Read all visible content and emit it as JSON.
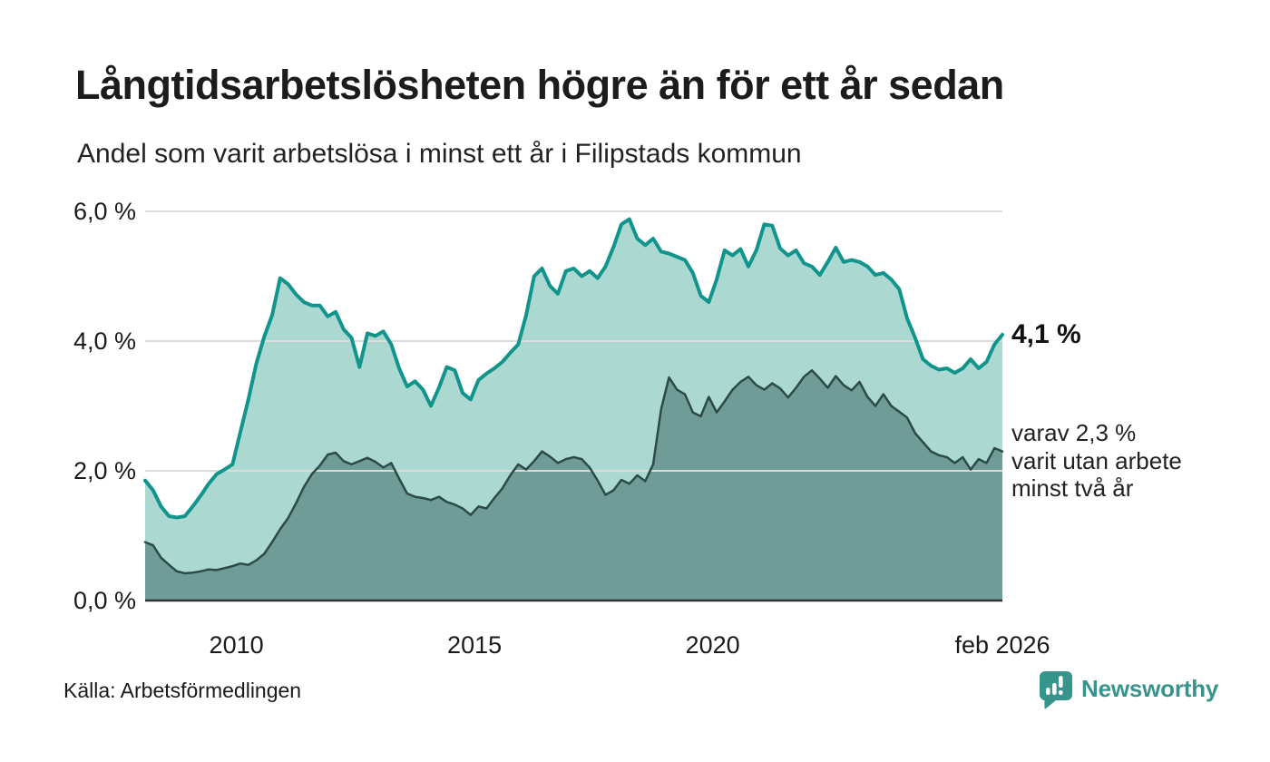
{
  "header": {
    "title": "Långtidsarbetslösheten högre än för ett år sedan",
    "subtitle": "Andel som varit arbetslösa i minst ett år i Filipstads kommun"
  },
  "chart_data": {
    "type": "area",
    "title": "Långtidsarbetslösheten högre än för ett år sedan",
    "subtitle": "Andel som varit arbetslösa i minst ett år i Filipstads kommun",
    "unit": "%",
    "x_start": "2008-02",
    "x_end": "2026-02",
    "x_total_months": 216,
    "point_interval_months": 2,
    "ylim": [
      0,
      6.0
    ],
    "grid": true,
    "legend": "none",
    "y_ticks": [
      {
        "label": "0,0 %",
        "value": 0
      },
      {
        "label": "2,0 %",
        "value": 2
      },
      {
        "label": "4,0 %",
        "value": 4
      },
      {
        "label": "6,0 %",
        "value": 6
      }
    ],
    "x_ticks": [
      {
        "label": "2010",
        "month": 23
      },
      {
        "label": "2015",
        "month": 83
      },
      {
        "label": "2020",
        "month": 143
      },
      {
        "label": "feb 2026",
        "month": 216
      }
    ],
    "series": [
      {
        "name": "Andel arbetslösa minst ett år",
        "color": "#10948b",
        "fill": "#abd9d2",
        "line_width": 4,
        "last_value": 4.1,
        "values": [
          1.85,
          1.7,
          1.45,
          1.3,
          1.28,
          1.3,
          1.45,
          1.62,
          1.8,
          1.95,
          2.02,
          2.1,
          2.6,
          3.1,
          3.65,
          4.07,
          4.4,
          4.97,
          4.88,
          4.72,
          4.6,
          4.55,
          4.55,
          4.38,
          4.45,
          4.18,
          4.05,
          3.6,
          4.12,
          4.08,
          4.15,
          3.95,
          3.58,
          3.3,
          3.38,
          3.25,
          3.0,
          3.28,
          3.6,
          3.55,
          3.2,
          3.1,
          3.4,
          3.5,
          3.58,
          3.68,
          3.82,
          3.95,
          4.4,
          5.0,
          5.12,
          4.85,
          4.73,
          5.08,
          5.12,
          5.0,
          5.08,
          4.97,
          5.15,
          5.45,
          5.8,
          5.88,
          5.58,
          5.48,
          5.58,
          5.38,
          5.35,
          5.3,
          5.25,
          5.05,
          4.7,
          4.6,
          4.95,
          5.4,
          5.32,
          5.42,
          5.15,
          5.4,
          5.8,
          5.78,
          5.43,
          5.32,
          5.4,
          5.2,
          5.15,
          5.02,
          5.22,
          5.44,
          5.22,
          5.25,
          5.22,
          5.15,
          5.02,
          5.05,
          4.95,
          4.8,
          4.35,
          4.05,
          3.72,
          3.62,
          3.56,
          3.58,
          3.51,
          3.58,
          3.72,
          3.58,
          3.68,
          3.95,
          4.1
        ]
      },
      {
        "name": "Andel arbetslösa minst två år",
        "color": "#2c4a46",
        "fill": "#6f9c96",
        "line_width": 2.5,
        "last_value": 2.3,
        "values": [
          0.9,
          0.85,
          0.66,
          0.55,
          0.45,
          0.42,
          0.43,
          0.45,
          0.48,
          0.47,
          0.5,
          0.53,
          0.57,
          0.55,
          0.62,
          0.72,
          0.9,
          1.1,
          1.27,
          1.5,
          1.75,
          1.95,
          2.08,
          2.25,
          2.28,
          2.15,
          2.1,
          2.15,
          2.2,
          2.14,
          2.05,
          2.12,
          1.88,
          1.65,
          1.6,
          1.58,
          1.55,
          1.6,
          1.52,
          1.48,
          1.42,
          1.32,
          1.45,
          1.42,
          1.58,
          1.73,
          1.93,
          2.1,
          2.02,
          2.15,
          2.3,
          2.22,
          2.12,
          2.18,
          2.21,
          2.18,
          2.05,
          1.85,
          1.63,
          1.7,
          1.86,
          1.8,
          1.93,
          1.84,
          2.1,
          2.95,
          3.44,
          3.25,
          3.18,
          2.9,
          2.84,
          3.14,
          2.9,
          3.07,
          3.25,
          3.37,
          3.45,
          3.32,
          3.25,
          3.35,
          3.27,
          3.13,
          3.28,
          3.45,
          3.55,
          3.42,
          3.28,
          3.46,
          3.32,
          3.24,
          3.37,
          3.14,
          3.0,
          3.18,
          3.0,
          2.91,
          2.82,
          2.58,
          2.44,
          2.3,
          2.24,
          2.21,
          2.12,
          2.21,
          2.02,
          2.18,
          2.12,
          2.35,
          2.3
        ]
      }
    ],
    "annotations": {
      "latest_total": "4,1 %",
      "latest_two_year_lines": [
        "varav 2,3 %",
        "varit utan arbete",
        "minst två år"
      ]
    },
    "colors": {
      "grid": "#dbdbdb",
      "axis": "#333333",
      "tick_text": "#1a1a1a"
    }
  },
  "footer": {
    "source": "Källa: Arbetsförmedlingen",
    "brand": "Newsworthy",
    "brand_color": "#37948c"
  }
}
